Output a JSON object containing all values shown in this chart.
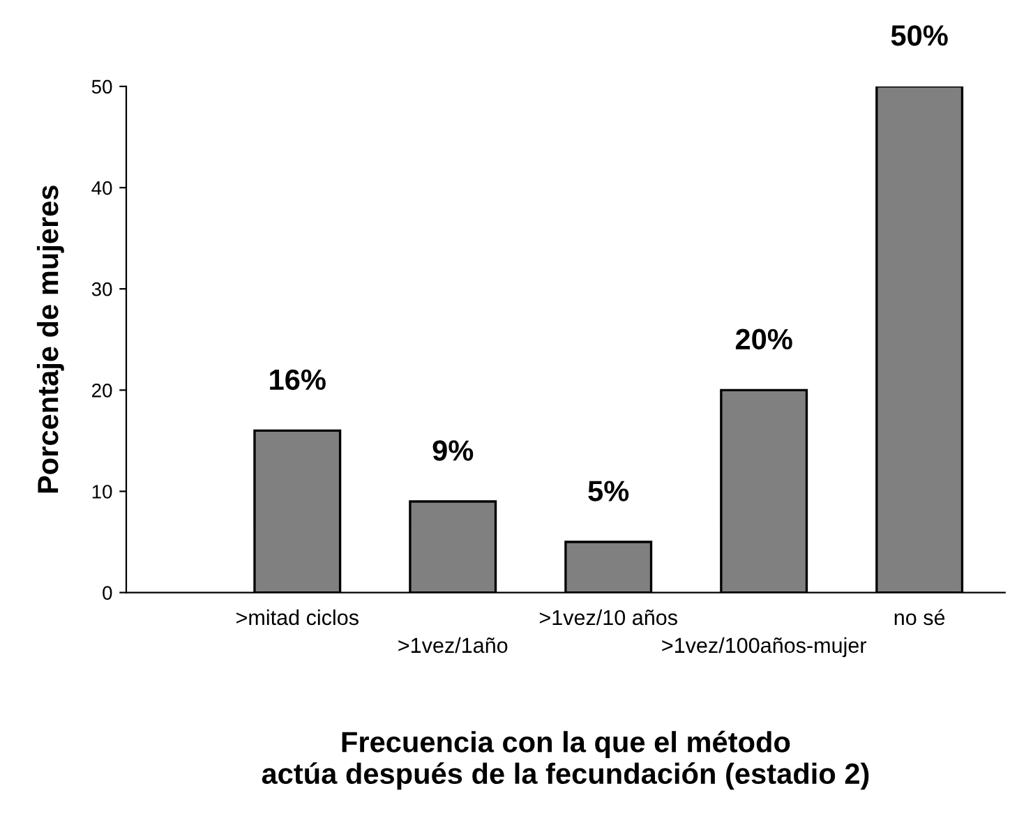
{
  "chart_data": {
    "type": "bar",
    "xlabel": "Frecuencia con la que el método\nactúa después de la fecundación (estadio 2)",
    "ylabel": "Porcentaje de mujeres",
    "categories": [
      ">mitad ciclos",
      ">1vez/1año",
      ">1vez/10 años",
      ">1vez/100años-mujer",
      "no sé"
    ],
    "values": [
      16,
      9,
      5,
      20,
      50
    ],
    "value_labels": [
      "16%",
      "9%",
      "5%",
      "20%",
      "50%"
    ],
    "color": "#808080",
    "ylim": [
      0,
      50
    ],
    "yticks": [
      0,
      10,
      20,
      30,
      40,
      50
    ],
    "grid": false,
    "legend": false
  }
}
